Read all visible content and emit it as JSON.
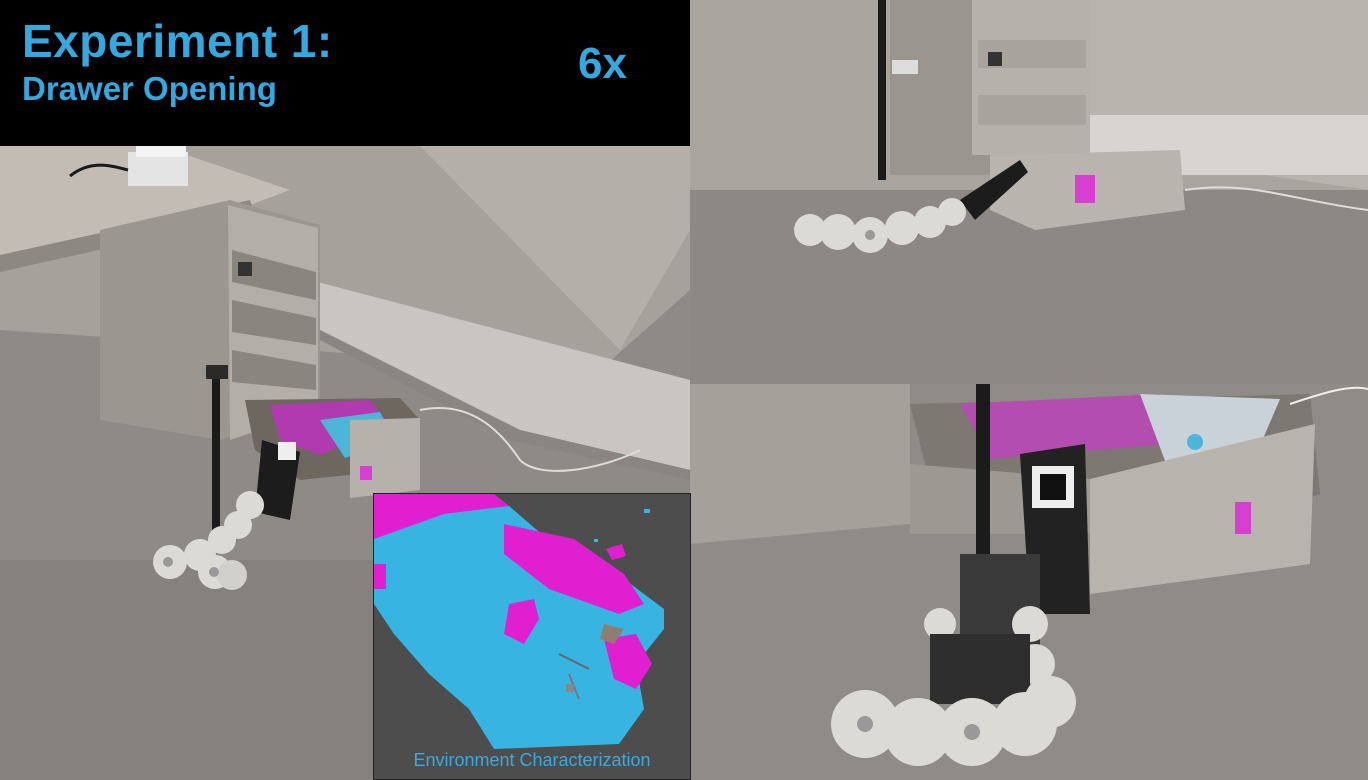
{
  "header": {
    "title": "Experiment 1:",
    "subtitle": "Drawer Opening",
    "speed": "6x"
  },
  "inset": {
    "caption": "Environment Characterization"
  },
  "colors": {
    "accent_text": "#35a8df",
    "map_cyan": "#38b4e2",
    "map_magenta": "#e020d0",
    "map_background": "#4d4d4d"
  }
}
